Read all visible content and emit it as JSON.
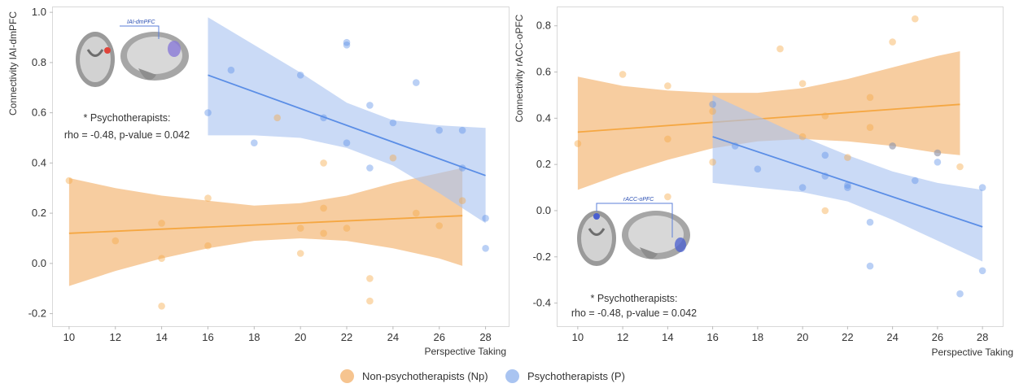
{
  "colors": {
    "np": "#f5a742",
    "np_band": "#f6c48f",
    "p": "#5b8ee6",
    "p_band": "#a9c4f1",
    "axis_text": "#333333",
    "panel_border": "#d9d9d9"
  },
  "legend": {
    "np_label": "Non-psychotherapists (Np)",
    "p_label": "Psychotherapists (P)"
  },
  "chart_data": [
    {
      "type": "scatter",
      "ylabel": "Connectivity IAI-dmPFC",
      "xlabel": "Perspective Taking",
      "xlim": [
        9.3,
        29
      ],
      "ylim": [
        -0.25,
        1.02
      ],
      "xticks": [
        10,
        12,
        14,
        16,
        18,
        20,
        22,
        24,
        26,
        28
      ],
      "yticks": [
        -0.2,
        0.0,
        0.2,
        0.4,
        0.6,
        0.8,
        1.0
      ],
      "ytick_labels": [
        "-0.2",
        "0.0",
        "0.2",
        "0.4",
        "0.6",
        "0.8",
        "1.0"
      ],
      "legend_placement": "bottom",
      "grid": false,
      "annotation": {
        "title": "* Psychotherapists:",
        "stats": "rho = -0.48, p-value = 0.042"
      },
      "brain_inset_label": "IAI-dmPFC",
      "series": [
        {
          "name": "Non-psychotherapists (Np)",
          "color_key": "np",
          "points": [
            [
              10,
              0.33
            ],
            [
              12,
              0.09
            ],
            [
              14,
              0.16
            ],
            [
              14,
              0.02
            ],
            [
              14,
              -0.17
            ],
            [
              16,
              0.26
            ],
            [
              16,
              0.07
            ],
            [
              19,
              0.58
            ],
            [
              20,
              0.14
            ],
            [
              20,
              0.04
            ],
            [
              21,
              0.4
            ],
            [
              21,
              0.22
            ],
            [
              21,
              0.12
            ],
            [
              22,
              0.14
            ],
            [
              23,
              -0.06
            ],
            [
              23,
              -0.15
            ],
            [
              24,
              0.42
            ],
            [
              25,
              0.2
            ],
            [
              26,
              0.15
            ],
            [
              27,
              0.25
            ]
          ],
          "fit": {
            "x": [
              10,
              27
            ],
            "y": [
              0.12,
              0.19
            ]
          },
          "band": {
            "x": [
              10,
              12,
              14,
              16,
              18,
              20,
              22,
              24,
              26,
              27
            ],
            "lower": [
              -0.09,
              -0.03,
              0.02,
              0.06,
              0.09,
              0.1,
              0.09,
              0.06,
              0.02,
              -0.01
            ],
            "upper": [
              0.34,
              0.3,
              0.27,
              0.25,
              0.23,
              0.24,
              0.27,
              0.32,
              0.36,
              0.38
            ]
          }
        },
        {
          "name": "Psychotherapists (P)",
          "color_key": "p",
          "points": [
            [
              16,
              0.6
            ],
            [
              17,
              0.77
            ],
            [
              18,
              0.48
            ],
            [
              20,
              0.75
            ],
            [
              21,
              0.58
            ],
            [
              22,
              0.88
            ],
            [
              22,
              0.87
            ],
            [
              22,
              0.48
            ],
            [
              23,
              0.63
            ],
            [
              23,
              0.38
            ],
            [
              24,
              0.56
            ],
            [
              25,
              0.72
            ],
            [
              26,
              0.53
            ],
            [
              27,
              0.53
            ],
            [
              27,
              0.38
            ],
            [
              28,
              0.18
            ],
            [
              28,
              0.06
            ]
          ],
          "fit": {
            "x": [
              16,
              28
            ],
            "y": [
              0.75,
              0.35
            ]
          },
          "band": {
            "x": [
              16,
              18,
              20,
              22,
              24,
              26,
              28
            ],
            "lower": [
              0.51,
              0.51,
              0.5,
              0.46,
              0.39,
              0.28,
              0.16
            ],
            "upper": [
              0.98,
              0.87,
              0.76,
              0.64,
              0.57,
              0.55,
              0.54
            ]
          }
        }
      ]
    },
    {
      "type": "scatter",
      "ylabel": "Connectivity rACC-oPFC",
      "xlabel": "Perspective Taking",
      "xlim": [
        9.1,
        28.9
      ],
      "ylim": [
        -0.5,
        0.88
      ],
      "xticks": [
        10,
        12,
        14,
        16,
        18,
        20,
        22,
        24,
        26,
        28
      ],
      "yticks": [
        -0.4,
        -0.2,
        0.0,
        0.2,
        0.4,
        0.6,
        0.8
      ],
      "ytick_labels": [
        "-0.4",
        "-0.2",
        "0.0",
        "0.2",
        "0.4",
        "0.6",
        "0.8"
      ],
      "legend_placement": "bottom",
      "grid": false,
      "annotation": {
        "title": "* Psychotherapists:",
        "stats": "rho = -0.48, p-value = 0.042"
      },
      "brain_inset_label": "rACC-oPFC",
      "series": [
        {
          "name": "Non-psychotherapists (Np)",
          "color_key": "np",
          "points": [
            [
              10,
              0.29
            ],
            [
              12,
              0.59
            ],
            [
              14,
              0.54
            ],
            [
              14,
              0.31
            ],
            [
              14,
              0.06
            ],
            [
              16,
              0.43
            ],
            [
              16,
              0.21
            ],
            [
              19,
              0.7
            ],
            [
              20,
              0.55
            ],
            [
              20,
              0.32
            ],
            [
              21,
              0.41
            ],
            [
              21,
              0.0
            ],
            [
              22,
              0.23
            ],
            [
              23,
              0.49
            ],
            [
              23,
              0.36
            ],
            [
              24,
              0.73
            ],
            [
              24,
              0.28
            ],
            [
              25,
              0.83
            ],
            [
              26,
              0.25
            ],
            [
              27,
              0.19
            ]
          ],
          "fit": {
            "x": [
              10,
              27
            ],
            "y": [
              0.34,
              0.46
            ]
          },
          "band": {
            "x": [
              10,
              12,
              14,
              16,
              18,
              20,
              22,
              24,
              26,
              27
            ],
            "lower": [
              0.09,
              0.16,
              0.22,
              0.27,
              0.3,
              0.31,
              0.3,
              0.28,
              0.25,
              0.24
            ],
            "upper": [
              0.58,
              0.54,
              0.52,
              0.51,
              0.51,
              0.53,
              0.57,
              0.62,
              0.67,
              0.69
            ]
          }
        },
        {
          "name": "Psychotherapists (P)",
          "color_key": "p",
          "points": [
            [
              16,
              0.46
            ],
            [
              17,
              0.28
            ],
            [
              18,
              0.18
            ],
            [
              20,
              0.1
            ],
            [
              21,
              0.24
            ],
            [
              21,
              0.15
            ],
            [
              22,
              0.11
            ],
            [
              22,
              0.1
            ],
            [
              23,
              -0.05
            ],
            [
              23,
              -0.24
            ],
            [
              24,
              0.28
            ],
            [
              25,
              0.13
            ],
            [
              26,
              0.25
            ],
            [
              26,
              0.21
            ],
            [
              27,
              -0.36
            ],
            [
              28,
              0.1
            ],
            [
              28,
              -0.26
            ]
          ],
          "fit": {
            "x": [
              16,
              28
            ],
            "y": [
              0.32,
              -0.07
            ]
          },
          "band": {
            "x": [
              16,
              18,
              20,
              22,
              24,
              26,
              28
            ],
            "lower": [
              0.12,
              0.1,
              0.08,
              0.04,
              -0.04,
              -0.13,
              -0.22
            ],
            "upper": [
              0.5,
              0.41,
              0.32,
              0.24,
              0.17,
              0.12,
              0.09
            ]
          }
        }
      ]
    }
  ]
}
